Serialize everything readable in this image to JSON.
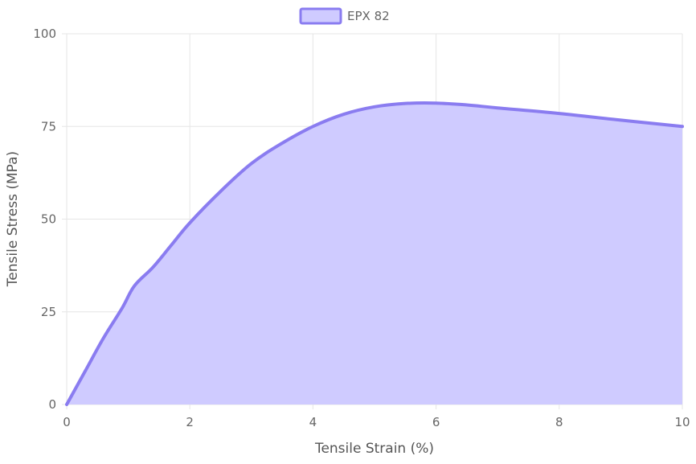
{
  "chart_data": {
    "type": "area",
    "xlabel": "Tensile Strain (%)",
    "ylabel": "Tensile Stress (MPa)",
    "xlim": [
      0,
      10
    ],
    "ylim": [
      0,
      100
    ],
    "xticks": [
      0,
      2,
      4,
      6,
      8,
      10
    ],
    "yticks": [
      0,
      25,
      50,
      75,
      100
    ],
    "grid": true,
    "legend": "top-center",
    "series": [
      {
        "name": "EPX 82",
        "color": "#8a7cf0",
        "fill": "#cfcbff",
        "x": [
          0,
          0.3,
          0.6,
          0.9,
          1.1,
          1.4,
          1.7,
          2.0,
          2.5,
          3.0,
          3.5,
          4.0,
          4.5,
          5.0,
          5.5,
          6.0,
          6.5,
          7.0,
          8.0,
          9.0,
          10.0
        ],
        "y": [
          0,
          9,
          18,
          26,
          32,
          37,
          43,
          49,
          57.5,
          65,
          70.5,
          75,
          78.3,
          80.3,
          81.2,
          81.3,
          80.8,
          80,
          78.5,
          76.7,
          75
        ]
      }
    ]
  }
}
